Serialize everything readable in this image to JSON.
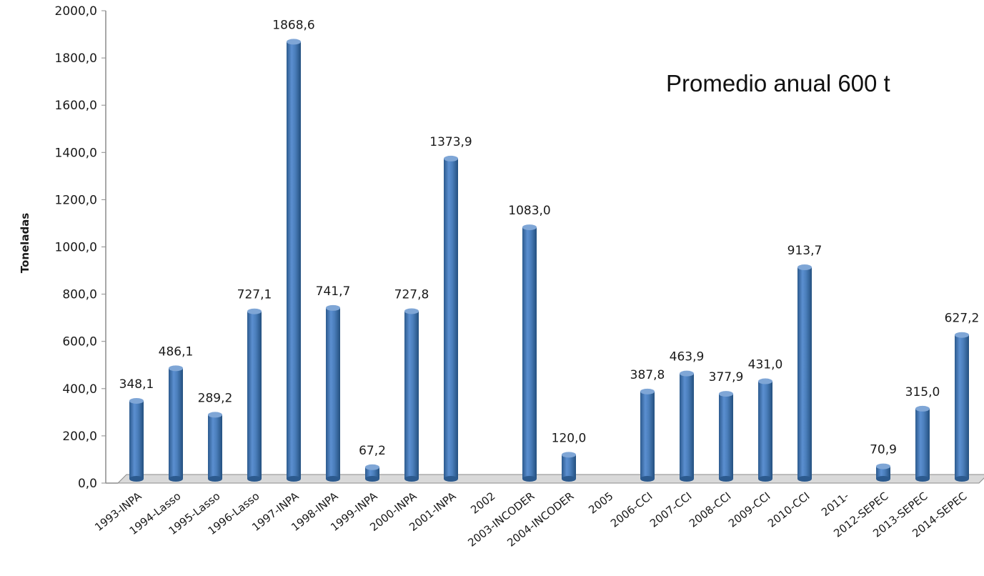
{
  "chart_data": {
    "type": "bar",
    "title": "",
    "xlabel": "",
    "ylabel": "Toneladas",
    "annotation": "Promedio anual 600 t",
    "ylim": [
      0,
      2000
    ],
    "y_ticks": [
      "0,0",
      "200,0",
      "400,0",
      "600,0",
      "800,0",
      "1000,0",
      "1200,0",
      "1400,0",
      "1600,0",
      "1800,0",
      "2000,0"
    ],
    "categories": [
      "1993-INPA",
      "1994-Lasso",
      "1995-Lasso",
      "1996-Lasso",
      "1997-INPA",
      "1998-INPA",
      "1999-INPA",
      "2000-INPA",
      "2001-INPA",
      "2002",
      "2003-INCODER",
      "2004-INCODER",
      "2005",
      "2006-CCI",
      "2007-CCI",
      "2008-CCI",
      "2009-CCI",
      "2010-CCI",
      "2011-",
      "2012-SEPEC",
      "2013-SEPEC",
      "2014-SEPEC"
    ],
    "values": [
      348.1,
      486.1,
      289.2,
      727.1,
      1868.6,
      741.7,
      67.2,
      727.8,
      1373.9,
      null,
      1083.0,
      120.0,
      null,
      387.8,
      463.9,
      377.9,
      431.0,
      913.7,
      null,
      70.9,
      315.0,
      627.2
    ],
    "value_labels": [
      "348,1",
      "486,1",
      "289,2",
      "727,1",
      "1868,6",
      "741,7",
      "67,2",
      "727,8",
      "1373,9",
      "",
      "1083,0",
      "120,0",
      "",
      "387,8",
      "463,9",
      "377,9",
      "431,0",
      "913,7",
      "",
      "70,9",
      "315,0",
      "627,2"
    ],
    "colors": {
      "bar": "#4a7ebb",
      "bar_dark": "#2c5a8e",
      "bar_light": "#7fa6d6",
      "axis": "#8c8c8c",
      "floor": "#d9d9d9"
    },
    "grid": false,
    "legend": "none"
  }
}
